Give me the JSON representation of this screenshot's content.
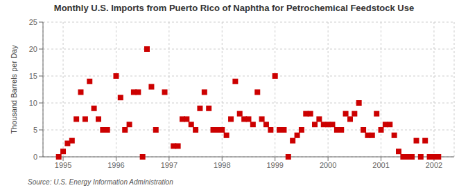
{
  "chart_data": {
    "type": "scatter",
    "title": "Monthly U.S. Imports from Puerto Rico of Naphtha for Petrochemical Feedstock Use",
    "y_label": "Thousand Barrels per Day",
    "annotations": [
      "Source: U.S. Energy Information Administration"
    ],
    "color": "#CC0000",
    "marker": "square",
    "grid": true,
    "xlim": [
      1994.62,
      2002.38
    ],
    "xticks": [
      1995,
      1996,
      1997,
      1998,
      1999,
      2000,
      2001,
      2002
    ],
    "ylim": [
      0,
      25
    ],
    "yticks": [
      0,
      5,
      10,
      15,
      20,
      25
    ],
    "x": [
      1994.917,
      1995.0,
      1995.083,
      1995.167,
      1995.25,
      1995.333,
      1995.417,
      1995.5,
      1995.583,
      1995.667,
      1995.75,
      1995.833,
      1996.0,
      1996.083,
      1996.167,
      1996.25,
      1996.333,
      1996.417,
      1996.5,
      1996.583,
      1996.667,
      1996.75,
      1996.917,
      1997.083,
      1997.167,
      1997.25,
      1997.333,
      1997.417,
      1997.5,
      1997.583,
      1997.667,
      1997.75,
      1997.833,
      1997.917,
      1998.0,
      1998.083,
      1998.167,
      1998.25,
      1998.333,
      1998.417,
      1998.5,
      1998.583,
      1998.667,
      1998.75,
      1998.833,
      1998.917,
      1999.0,
      1999.083,
      1999.167,
      1999.25,
      1999.333,
      1999.417,
      1999.5,
      1999.583,
      1999.667,
      1999.75,
      1999.833,
      1999.917,
      2000.0,
      2000.083,
      2000.167,
      2000.25,
      2000.333,
      2000.417,
      2000.5,
      2000.583,
      2000.667,
      2000.75,
      2000.833,
      2000.917,
      2001.0,
      2001.083,
      2001.167,
      2001.25,
      2001.333,
      2001.417,
      2001.5,
      2001.583,
      2001.667,
      2001.75,
      2001.833,
      2001.917,
      2002.0,
      2002.083
    ],
    "values": [
      0.0,
      1.0,
      2.5,
      3.0,
      7.0,
      12.0,
      7.0,
      14.0,
      9.0,
      7.0,
      5.0,
      5.0,
      15.0,
      11.0,
      5.0,
      6.0,
      12.0,
      12.0,
      0.0,
      20.0,
      13.0,
      5.0,
      12.0,
      2.0,
      2.0,
      7.0,
      7.0,
      6.0,
      5.0,
      9.0,
      12.0,
      9.0,
      5.0,
      5.0,
      5.0,
      4.0,
      7.0,
      14.0,
      8.0,
      7.0,
      7.0,
      6.0,
      12.0,
      7.0,
      6.0,
      5.0,
      15.0,
      5.0,
      5.0,
      0.0,
      3.0,
      4.0,
      5.0,
      8.0,
      8.0,
      6.0,
      7.0,
      6.0,
      6.0,
      6.0,
      5.0,
      5.0,
      8.0,
      7.0,
      8.0,
      10.0,
      5.0,
      4.0,
      4.0,
      8.0,
      5.0,
      6.0,
      6.0,
      4.0,
      1.0,
      0.0,
      0.0,
      0.0,
      3.0,
      0.0,
      3.0,
      0.0,
      0.0,
      0.0
    ]
  }
}
